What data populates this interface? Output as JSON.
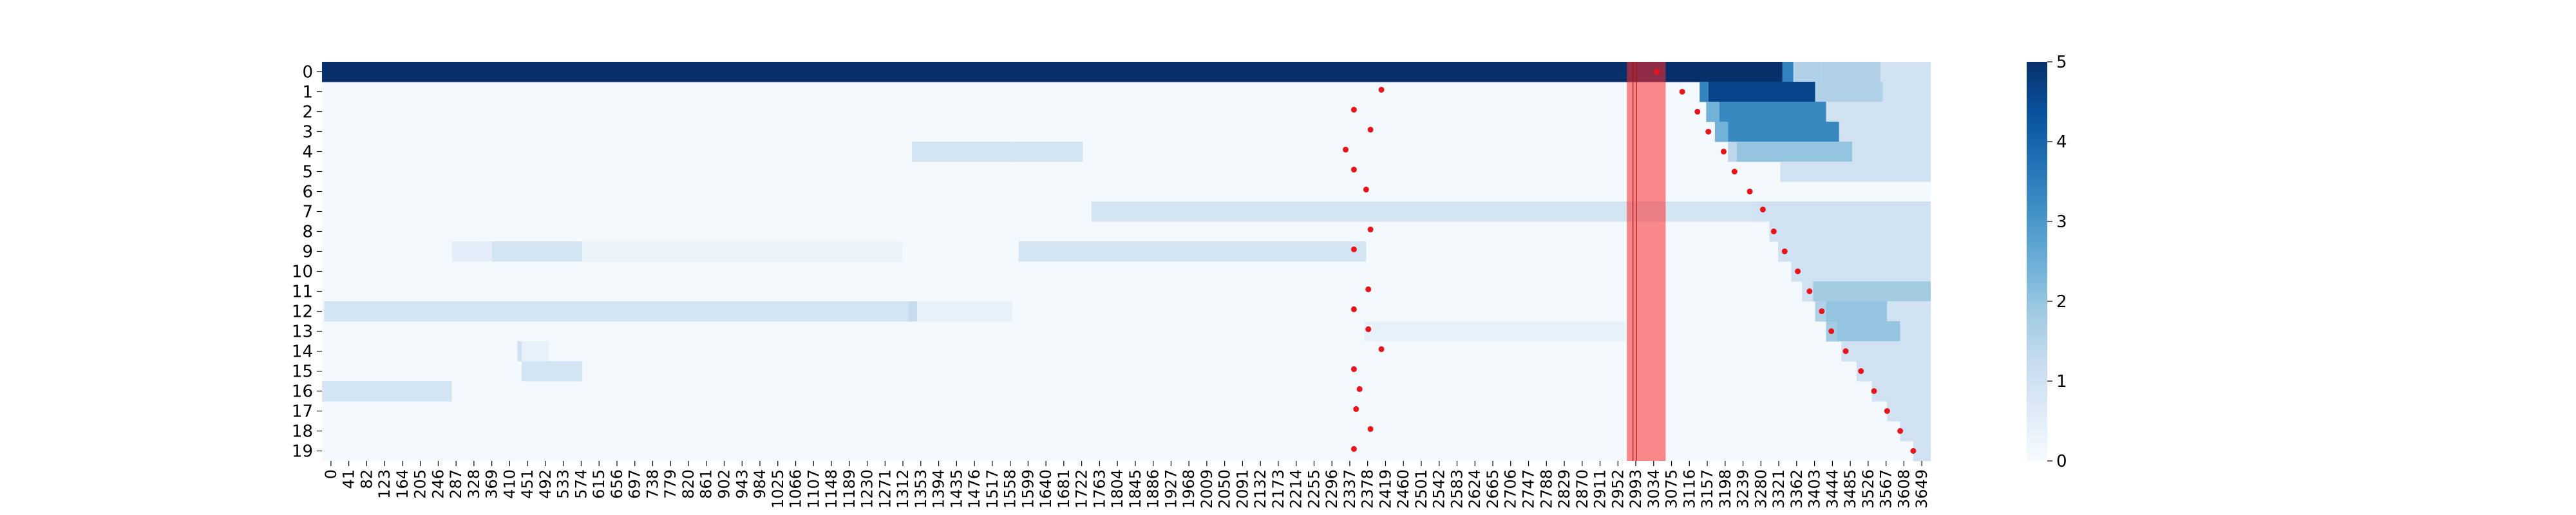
{
  "chart_data": {
    "type": "heatmap",
    "title": "",
    "xlabel": "",
    "ylabel": "",
    "x_tick_labels": [
      "0",
      "41",
      "82",
      "123",
      "164",
      "205",
      "246",
      "287",
      "328",
      "369",
      "410",
      "451",
      "492",
      "533",
      "574",
      "615",
      "656",
      "697",
      "738",
      "779",
      "820",
      "861",
      "902",
      "943",
      "984",
      "1025",
      "1066",
      "1107",
      "1148",
      "1189",
      "1230",
      "1271",
      "1312",
      "1353",
      "1394",
      "1435",
      "1476",
      "1517",
      "1558",
      "1599",
      "1640",
      "1681",
      "1722",
      "1763",
      "1804",
      "1845",
      "1886",
      "1927",
      "1968",
      "2009",
      "2050",
      "2091",
      "2132",
      "2173",
      "2214",
      "2255",
      "2296",
      "2337",
      "2378",
      "2419",
      "2460",
      "2501",
      "2542",
      "2583",
      "2624",
      "2665",
      "2706",
      "2747",
      "2788",
      "2829",
      "2870",
      "2911",
      "2952",
      "2993",
      "3034",
      "3075",
      "3116",
      "3157",
      "3198",
      "3239",
      "3280",
      "3321",
      "3362",
      "3403",
      "3444",
      "3485",
      "3526",
      "3567",
      "3608",
      "3649"
    ],
    "x_range": [
      0,
      3690
    ],
    "rows": [
      "0",
      "1",
      "2",
      "3",
      "4",
      "5",
      "6",
      "7",
      "8",
      "9",
      "10",
      "11",
      "12",
      "13",
      "14",
      "15",
      "16",
      "17",
      "18",
      "19"
    ],
    "colorbar": {
      "min": 0,
      "max": 5,
      "ticks": [
        "0",
        "1",
        "2",
        "3",
        "4",
        "5"
      ],
      "colormap": "Blues"
    },
    "background_value": 0.08,
    "cells": [
      {
        "row": 0,
        "x0": 0,
        "x1": 3350,
        "value": 5
      },
      {
        "row": 0,
        "x0": 3350,
        "x1": 3375,
        "value": 3.4
      },
      {
        "row": 0,
        "x0": 3375,
        "x1": 3440,
        "value": 1.6
      },
      {
        "row": 0,
        "x0": 3440,
        "x1": 3575,
        "value": 1.6
      },
      {
        "row": 0,
        "x0": 3575,
        "x1": 3690,
        "value": 1
      },
      {
        "row": 1,
        "x0": 3160,
        "x1": 3180,
        "value": 3.4
      },
      {
        "row": 1,
        "x0": 3180,
        "x1": 3425,
        "value": 4.6
      },
      {
        "row": 1,
        "x0": 3425,
        "x1": 3580,
        "value": 1.6
      },
      {
        "row": 1,
        "x0": 3580,
        "x1": 3690,
        "value": 1
      },
      {
        "row": 2,
        "x0": 3175,
        "x1": 3205,
        "value": 2.4
      },
      {
        "row": 2,
        "x0": 3205,
        "x1": 3450,
        "value": 3.3
      },
      {
        "row": 2,
        "x0": 3450,
        "x1": 3690,
        "value": 1
      },
      {
        "row": 3,
        "x0": 3195,
        "x1": 3225,
        "value": 2.4
      },
      {
        "row": 3,
        "x0": 3225,
        "x1": 3480,
        "value": 3.3
      },
      {
        "row": 3,
        "x0": 3480,
        "x1": 3690,
        "value": 1
      },
      {
        "row": 4,
        "x0": 1353,
        "x1": 1583,
        "value": 0.9
      },
      {
        "row": 4,
        "x0": 1583,
        "x1": 1745,
        "value": 0.9
      },
      {
        "row": 4,
        "x0": 3225,
        "x1": 3245,
        "value": 1.4
      },
      {
        "row": 4,
        "x0": 3245,
        "x1": 3510,
        "value": 2
      },
      {
        "row": 4,
        "x0": 3510,
        "x1": 3690,
        "value": 1
      },
      {
        "row": 5,
        "x0": 3345,
        "x1": 3690,
        "value": 1
      },
      {
        "row": 7,
        "x0": 1765,
        "x1": 3280,
        "value": 0.9
      },
      {
        "row": 7,
        "x0": 3280,
        "x1": 3690,
        "value": 1
      },
      {
        "row": 8,
        "x0": 3320,
        "x1": 3690,
        "value": 1
      },
      {
        "row": 9,
        "x0": 298,
        "x1": 390,
        "value": 0.5
      },
      {
        "row": 9,
        "x0": 390,
        "x1": 597,
        "value": 0.9
      },
      {
        "row": 9,
        "x0": 597,
        "x1": 1332,
        "value": 0.3
      },
      {
        "row": 9,
        "x0": 1598,
        "x1": 1765,
        "value": 0.9
      },
      {
        "row": 9,
        "x0": 1765,
        "x1": 2395,
        "value": 0.9
      },
      {
        "row": 9,
        "x0": 3340,
        "x1": 3690,
        "value": 1
      },
      {
        "row": 10,
        "x0": 3370,
        "x1": 3690,
        "value": 1
      },
      {
        "row": 11,
        "x0": 3395,
        "x1": 3420,
        "value": 1
      },
      {
        "row": 11,
        "x0": 3420,
        "x1": 3690,
        "value": 1.8
      },
      {
        "row": 12,
        "x0": 5,
        "x1": 1345,
        "value": 0.9
      },
      {
        "row": 12,
        "x0": 1345,
        "x1": 1365,
        "value": 1.2
      },
      {
        "row": 12,
        "x0": 1365,
        "x1": 1583,
        "value": 0.4
      },
      {
        "row": 12,
        "x0": 3425,
        "x1": 3450,
        "value": 1.6
      },
      {
        "row": 12,
        "x0": 3450,
        "x1": 3590,
        "value": 2
      },
      {
        "row": 12,
        "x0": 3590,
        "x1": 3690,
        "value": 1
      },
      {
        "row": 13,
        "x0": 2390,
        "x1": 2990,
        "value": 0.4
      },
      {
        "row": 13,
        "x0": 3450,
        "x1": 3475,
        "value": 1.8
      },
      {
        "row": 13,
        "x0": 3475,
        "x1": 3620,
        "value": 2
      },
      {
        "row": 13,
        "x0": 3620,
        "x1": 3690,
        "value": 1
      },
      {
        "row": 14,
        "x0": 448,
        "x1": 458,
        "value": 1
      },
      {
        "row": 14,
        "x0": 458,
        "x1": 520,
        "value": 0.4
      },
      {
        "row": 14,
        "x0": 3485,
        "x1": 3690,
        "value": 1
      },
      {
        "row": 15,
        "x0": 458,
        "x1": 597,
        "value": 0.9
      },
      {
        "row": 15,
        "x0": 3520,
        "x1": 3690,
        "value": 1
      },
      {
        "row": 16,
        "x0": 0,
        "x1": 298,
        "value": 0.9
      },
      {
        "row": 16,
        "x0": 3555,
        "x1": 3690,
        "value": 1
      },
      {
        "row": 17,
        "x0": 3590,
        "x1": 3690,
        "value": 1
      },
      {
        "row": 18,
        "x0": 3620,
        "x1": 3690,
        "value": 1
      },
      {
        "row": 19,
        "x0": 3650,
        "x1": 3690,
        "value": 1
      }
    ],
    "markers": [
      {
        "row": 0.0,
        "x": 3062
      },
      {
        "row": 0.9,
        "x": 2430
      },
      {
        "row": 1.0,
        "x": 3120
      },
      {
        "row": 1.9,
        "x": 2367
      },
      {
        "row": 2.0,
        "x": 3155
      },
      {
        "row": 2.9,
        "x": 2405
      },
      {
        "row": 3.0,
        "x": 3180
      },
      {
        "row": 3.9,
        "x": 2348
      },
      {
        "row": 4.0,
        "x": 3215
      },
      {
        "row": 4.9,
        "x": 2367
      },
      {
        "row": 5.0,
        "x": 3240
      },
      {
        "row": 5.9,
        "x": 2395
      },
      {
        "row": 6.0,
        "x": 3275
      },
      {
        "row": 6.9,
        "x": 3305
      },
      {
        "row": 7.9,
        "x": 2405
      },
      {
        "row": 8.0,
        "x": 3330
      },
      {
        "row": 8.9,
        "x": 2367
      },
      {
        "row": 9.0,
        "x": 3355
      },
      {
        "row": 10.0,
        "x": 3385
      },
      {
        "row": 10.9,
        "x": 2400
      },
      {
        "row": 11.0,
        "x": 3412
      },
      {
        "row": 11.9,
        "x": 2367
      },
      {
        "row": 12.0,
        "x": 3440
      },
      {
        "row": 12.9,
        "x": 2400
      },
      {
        "row": 13.0,
        "x": 3462
      },
      {
        "row": 13.9,
        "x": 2430
      },
      {
        "row": 14.0,
        "x": 3495
      },
      {
        "row": 14.9,
        "x": 2367
      },
      {
        "row": 15.0,
        "x": 3530
      },
      {
        "row": 15.9,
        "x": 2380
      },
      {
        "row": 16.0,
        "x": 3560
      },
      {
        "row": 16.9,
        "x": 2372
      },
      {
        "row": 17.0,
        "x": 3590
      },
      {
        "row": 17.9,
        "x": 2405
      },
      {
        "row": 18.0,
        "x": 3620
      },
      {
        "row": 18.9,
        "x": 2367
      },
      {
        "row": 19.0,
        "x": 3650
      }
    ],
    "marker_color": "#e8141a",
    "highlight_band": {
      "x0": 2993,
      "x1": 3082,
      "color": "#ff2a2a",
      "opacity": 0.55
    },
    "highlight_band_lines": [
      3007,
      3015
    ]
  }
}
